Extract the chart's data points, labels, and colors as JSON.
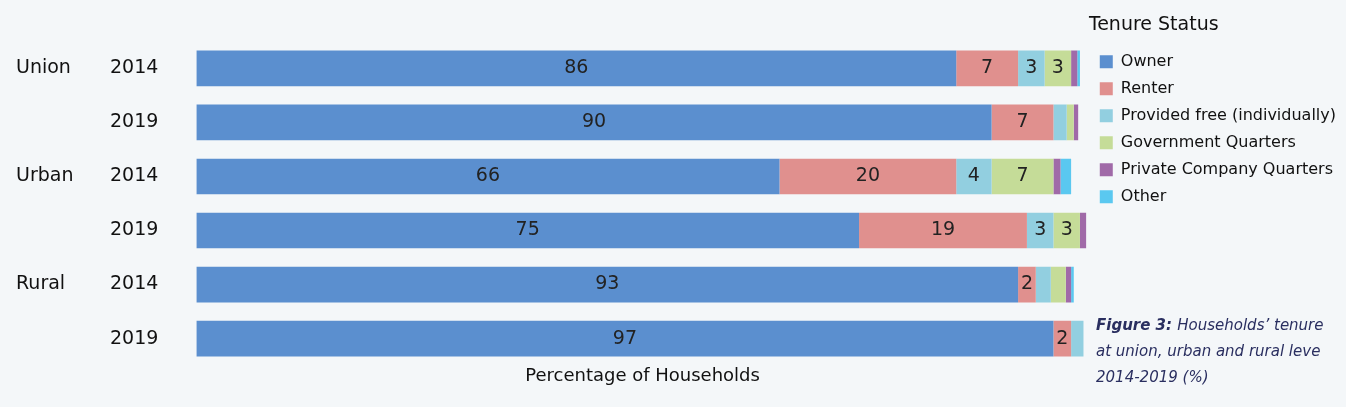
{
  "chart_data": {
    "type": "bar",
    "orientation": "horizontal",
    "stacked": true,
    "xlabel": "Percentage of Households",
    "legend_title": "Tenure Status",
    "legend": "right",
    "tick_labels": "y",
    "categories": [
      "2014",
      "2019",
      "2014",
      "2019",
      "2014",
      "2019"
    ],
    "xlim": [
      0,
      101
    ],
    "series": [
      {
        "name": "Owner",
        "color": "#5b8fcf",
        "values": [
          86,
          90,
          66,
          75,
          93,
          97
        ],
        "value_labels": [
          "86",
          "90",
          "66",
          "75",
          "93",
          "97"
        ]
      },
      {
        "name": "Renter",
        "color": "#e0908e",
        "values": [
          7,
          7,
          20,
          19,
          2,
          2
        ],
        "value_labels": [
          "7",
          "7",
          "20",
          "19",
          "2",
          "2"
        ]
      },
      {
        "name": "Provided free (individually)",
        "color": "#92cfe0",
        "values": [
          3,
          1.5,
          4,
          3,
          1.7,
          1.4
        ],
        "value_labels": [
          "3",
          null,
          "4",
          "3",
          null,
          null
        ]
      },
      {
        "name": "Government Quarters",
        "color": "#c5dc98",
        "values": [
          3,
          0.8,
          7,
          3,
          1.7,
          0
        ],
        "value_labels": [
          "3",
          null,
          "7",
          "3",
          null,
          null
        ]
      },
      {
        "name": "Private Company Quarters",
        "color": "#a06aa8",
        "values": [
          0.7,
          0.5,
          0.8,
          0.7,
          0.6,
          0
        ],
        "value_labels": [
          null,
          null,
          null,
          null,
          null,
          null
        ]
      },
      {
        "name": "Other",
        "color": "#5ac8f0",
        "values": [
          0.3,
          0,
          1.2,
          0,
          0.3,
          0
        ],
        "value_labels": [
          null,
          null,
          null,
          null,
          null,
          null
        ]
      }
    ],
    "annotations": [
      "Union",
      "Urban",
      "Rural",
      "Figure 3:",
      "Households’ tenure",
      "at union, urban and rural leve",
      "2014-2019 (%)"
    ]
  }
}
